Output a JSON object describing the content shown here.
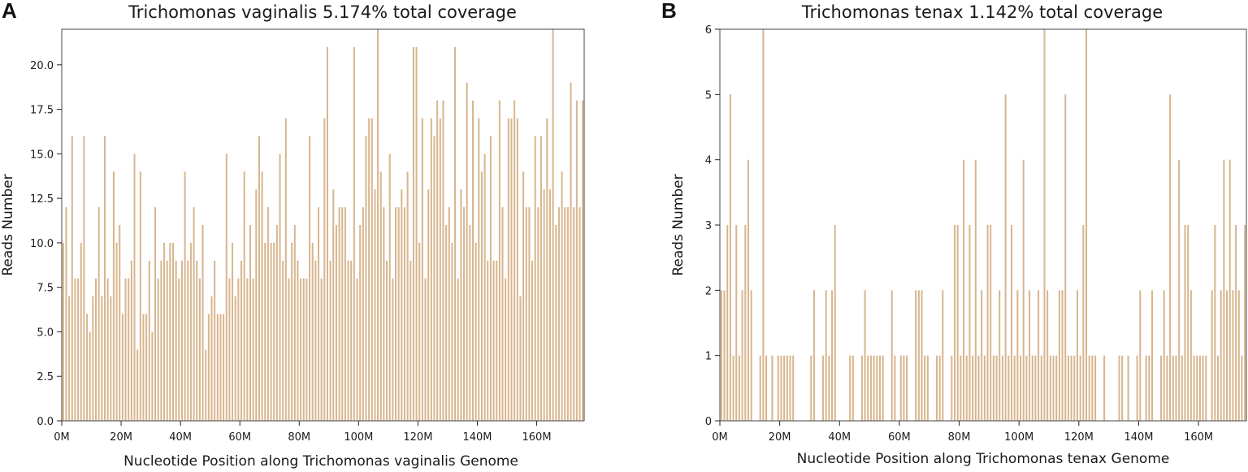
{
  "colors": {
    "bar": "#d8b58e",
    "axis": "#444444",
    "text": "#1a1a1a"
  },
  "chart_data": [
    {
      "panel": "A",
      "type": "bar",
      "title": "Trichomonas vaginalis 5.174% total coverage",
      "xlabel": "Nucleotide Position along Trichomonas vaginalis Genome",
      "ylabel": "Reads Number",
      "xlim": [
        0,
        176
      ],
      "ylim": [
        0,
        22
      ],
      "xticks": [
        0,
        20,
        40,
        60,
        80,
        100,
        120,
        140,
        160
      ],
      "xtick_labels": [
        "0M",
        "20M",
        "40M",
        "60M",
        "80M",
        "100M",
        "120M",
        "140M",
        "160M"
      ],
      "yticks": [
        0,
        2.5,
        5,
        7.5,
        10,
        12.5,
        15,
        17.5,
        20
      ],
      "ytick_labels": [
        "0.0",
        "2.5",
        "5.0",
        "7.5",
        "10.0",
        "12.5",
        "15.0",
        "17.5",
        "20.0"
      ],
      "bin_width_M": 1,
      "values": [
        10,
        12,
        7,
        16,
        8,
        8,
        10,
        16,
        6,
        5,
        7,
        8,
        12,
        7,
        16,
        8,
        7,
        14,
        10,
        11,
        6,
        8,
        8,
        9,
        15,
        4,
        14,
        6,
        6,
        9,
        5,
        12,
        8,
        9,
        10,
        9,
        10,
        10,
        9,
        8,
        9,
        14,
        9,
        10,
        12,
        9,
        8,
        11,
        4,
        6,
        7,
        9,
        6,
        6,
        6,
        15,
        8,
        10,
        7,
        8,
        9,
        14,
        8,
        11,
        8,
        13,
        16,
        14,
        10,
        12,
        10,
        10,
        11,
        15,
        9,
        17,
        8,
        10,
        11,
        9,
        8,
        8,
        8,
        16,
        10,
        9,
        12,
        8,
        17,
        21,
        9,
        13,
        11,
        12,
        12,
        12,
        9,
        9,
        21,
        8,
        11,
        12,
        16,
        17,
        17,
        13,
        22,
        14,
        12,
        9,
        15,
        8,
        12,
        12,
        13,
        12,
        14,
        9,
        21,
        21,
        10,
        17,
        8,
        13,
        17,
        16,
        18,
        17,
        18,
        11,
        12,
        10,
        21,
        8,
        13,
        12,
        19,
        11,
        18,
        10,
        17,
        14,
        15,
        9,
        16,
        9,
        9,
        18,
        12,
        8,
        17,
        17,
        18,
        17,
        7,
        14,
        12,
        12,
        9,
        16,
        12,
        16,
        13,
        17,
        13,
        22,
        11,
        12,
        14,
        12,
        12,
        19,
        12,
        18,
        12,
        18
      ],
      "highlight_values": [
        22,
        22,
        22
      ]
    },
    {
      "panel": "B",
      "type": "bar",
      "title": "Trichomonas tenax 1.142% total coverage",
      "xlabel": "Nucleotide Position along Trichomonas tenax Genome",
      "ylabel": "Reads Number",
      "xlim": [
        0,
        176
      ],
      "ylim": [
        0,
        6
      ],
      "xticks": [
        0,
        20,
        40,
        60,
        80,
        100,
        120,
        140,
        160
      ],
      "xtick_labels": [
        "0M",
        "20M",
        "40M",
        "60M",
        "80M",
        "100M",
        "120M",
        "140M",
        "160M"
      ],
      "yticks": [
        0,
        1,
        2,
        3,
        4,
        5,
        6
      ],
      "ytick_labels": [
        "0",
        "1",
        "2",
        "3",
        "4",
        "5",
        "6"
      ],
      "bin_width_M": 1,
      "values": [
        2,
        2,
        3,
        5,
        1,
        3,
        1,
        2,
        3,
        4,
        2,
        0,
        0,
        1,
        6,
        1,
        0,
        1,
        0,
        1,
        1,
        1,
        1,
        1,
        1,
        0,
        0,
        0,
        0,
        0,
        1,
        2,
        0,
        0,
        1,
        2,
        1,
        2,
        3,
        0,
        0,
        0,
        0,
        1,
        1,
        0,
        0,
        1,
        2,
        1,
        1,
        1,
        1,
        1,
        1,
        0,
        0,
        2,
        1,
        0,
        1,
        1,
        1,
        0,
        0,
        2,
        2,
        2,
        1,
        1,
        0,
        0,
        1,
        1,
        2,
        0,
        0,
        1,
        3,
        3,
        1,
        4,
        1,
        3,
        1,
        4,
        1,
        2,
        1,
        3,
        3,
        1,
        1,
        2,
        1,
        5,
        1,
        3,
        1,
        2,
        1,
        4,
        1,
        2,
        1,
        1,
        2,
        1,
        6,
        2,
        1,
        1,
        1,
        2,
        2,
        5,
        1,
        1,
        1,
        2,
        1,
        3,
        6,
        1,
        1,
        1,
        0,
        0,
        1,
        0,
        0,
        0,
        0,
        1,
        1,
        0,
        1,
        0,
        0,
        1,
        2,
        0,
        1,
        1,
        2,
        0,
        0,
        1,
        2,
        1,
        5,
        1,
        1,
        4,
        1,
        3,
        3,
        2,
        1,
        1,
        1,
        1,
        1,
        0,
        2,
        3,
        1,
        2,
        4,
        2,
        4,
        2,
        3,
        2,
        1,
        3
      ],
      "highlight_values": [
        6,
        6,
        6
      ]
    }
  ]
}
